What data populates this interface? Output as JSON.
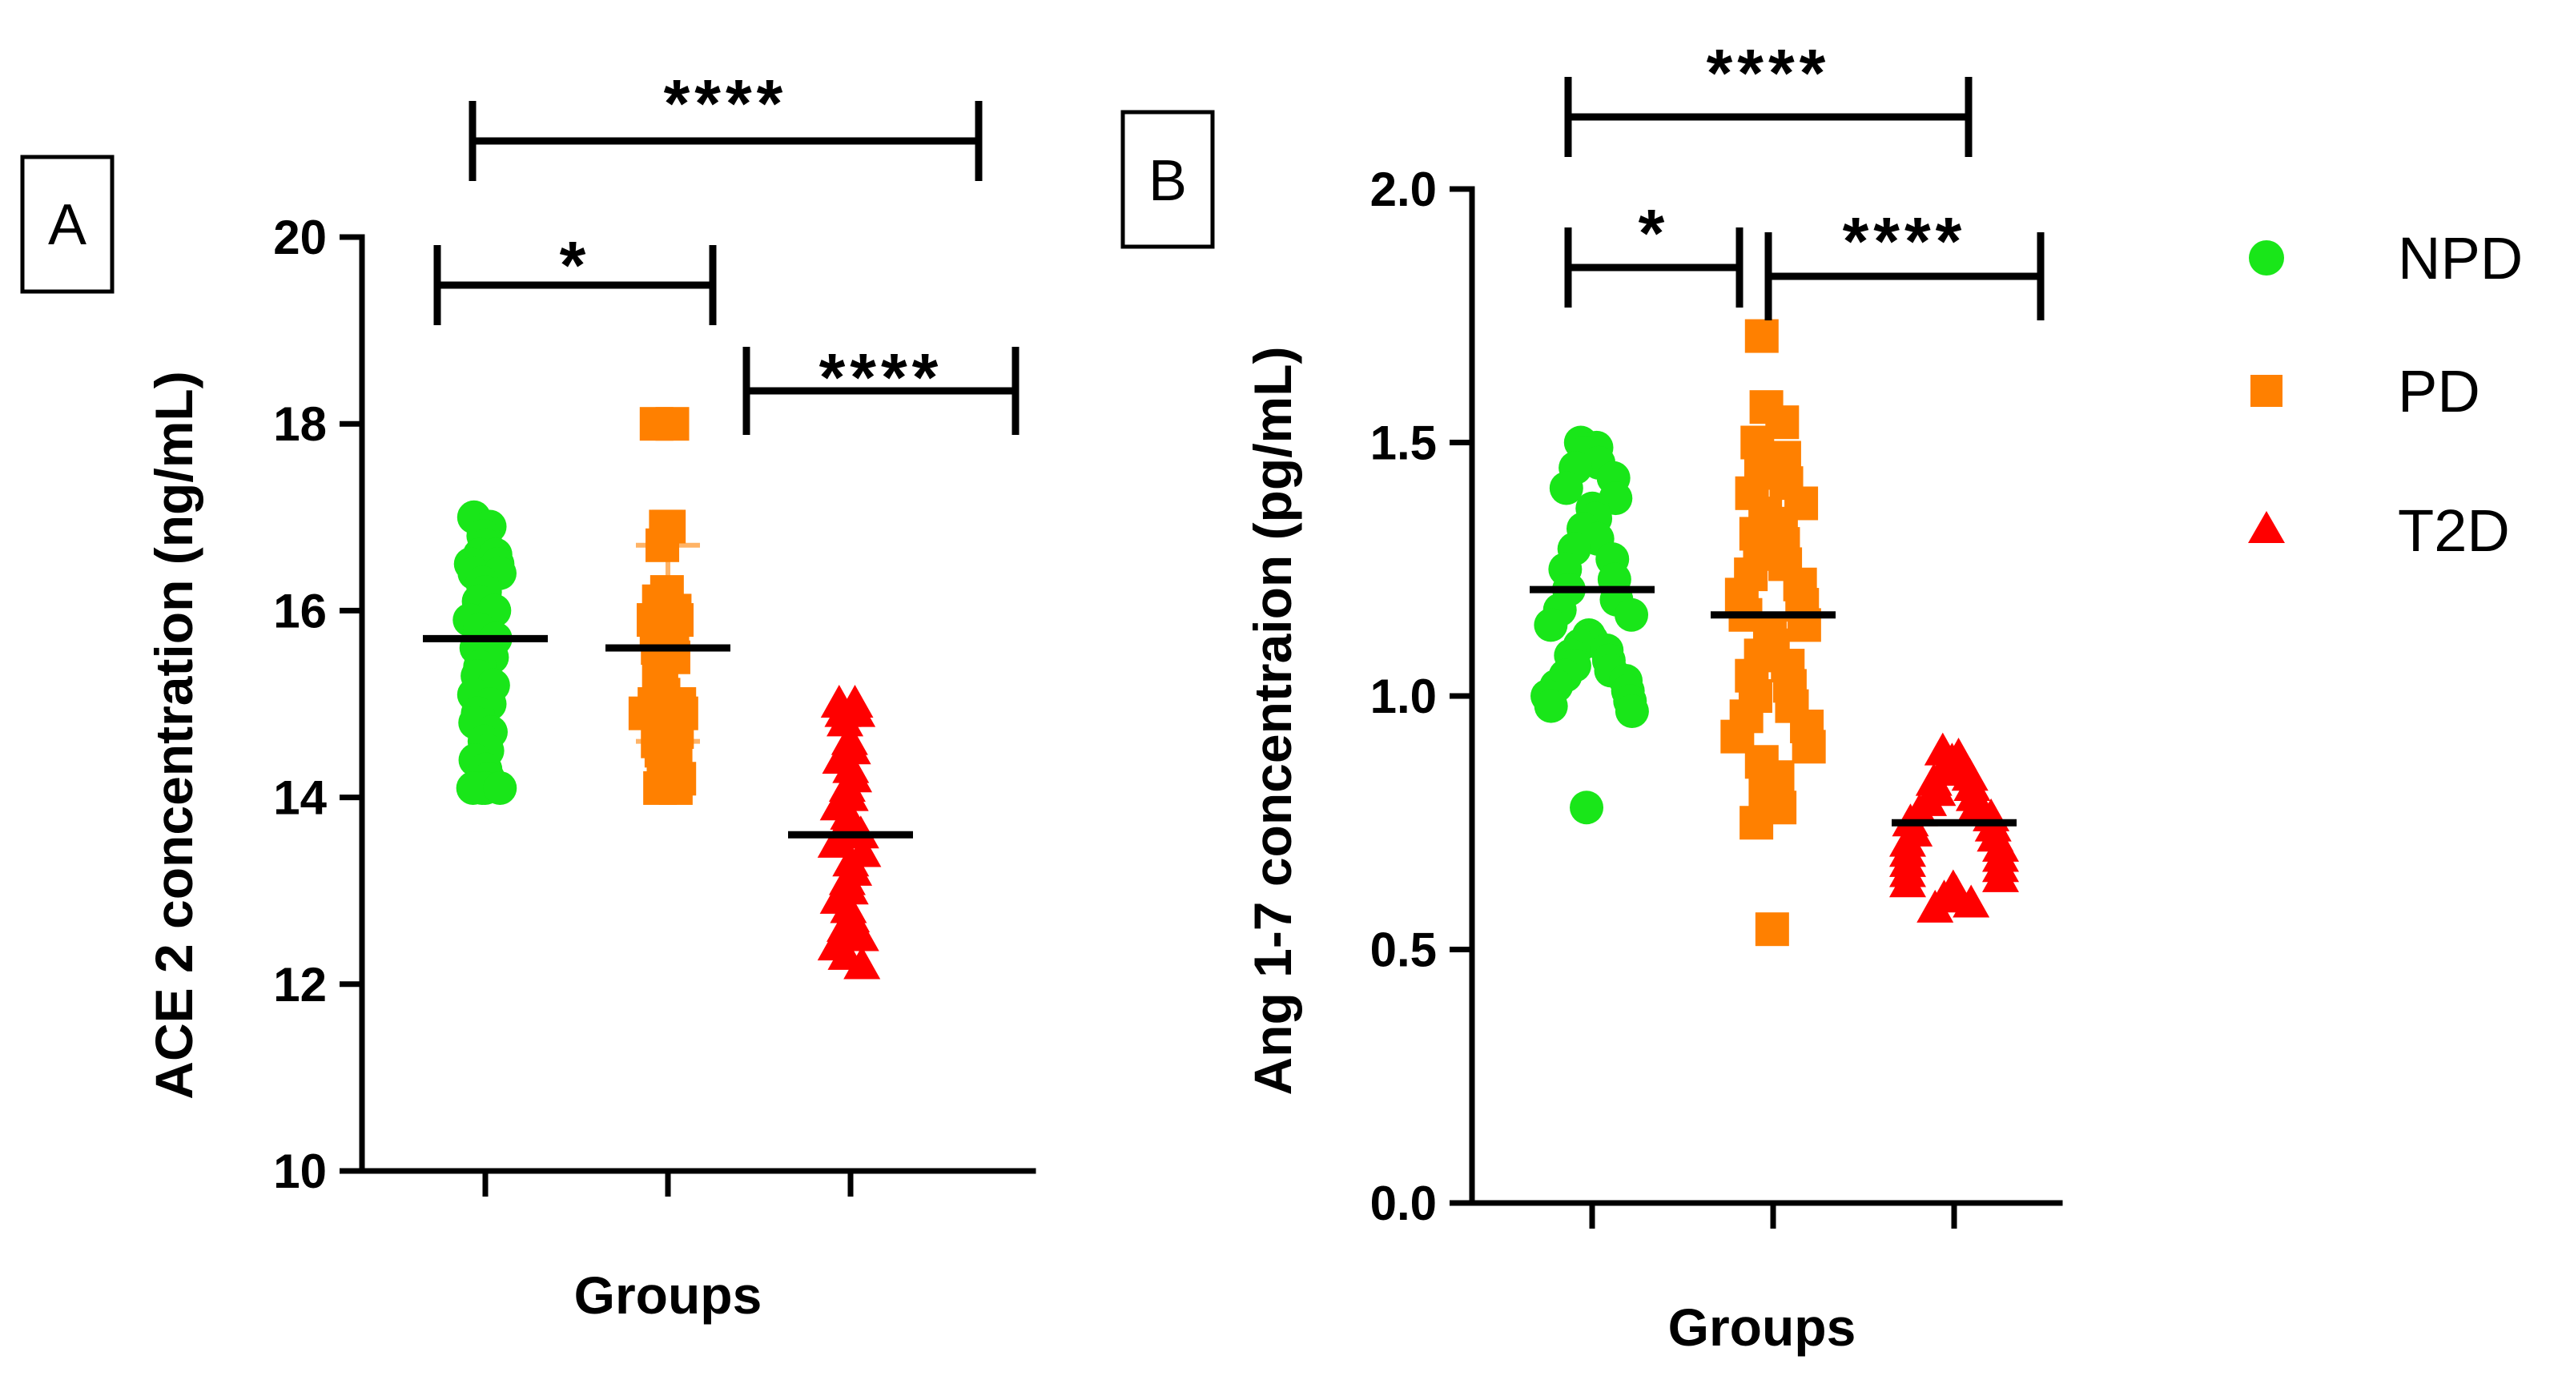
{
  "chart_data": [
    {
      "panel": "A",
      "type": "scatter",
      "ylabel": "ACE 2 concentration (ng/mL)",
      "xlabel": "Groups",
      "ylim": [
        10,
        20
      ],
      "yticks": [
        "10",
        "12",
        "14",
        "16",
        "18",
        "20"
      ],
      "groups": [
        "NPD",
        "PD",
        "T2D"
      ],
      "series": [
        {
          "name": "NPD",
          "mean": 15.7,
          "values": [
            17.0,
            16.9,
            16.8,
            16.7,
            16.6,
            16.6,
            16.5,
            16.5,
            16.4,
            16.4,
            16.3,
            16.2,
            16.1,
            16.0,
            15.9,
            15.8,
            15.7,
            15.6,
            15.5,
            15.4,
            15.3,
            15.2,
            15.1,
            15.0,
            14.9,
            14.8,
            14.7,
            14.6,
            14.5,
            14.4,
            14.3,
            14.2,
            14.1,
            14.1,
            14.1,
            14.1
          ]
        },
        {
          "name": "PD",
          "mean": 15.6,
          "sd_range": [
            14.6,
            16.7
          ],
          "values": [
            18.0,
            18.0,
            16.9,
            16.9,
            16.7,
            16.2,
            16.1,
            16.0,
            16.0,
            15.9,
            15.9,
            15.8,
            15.7,
            15.7,
            15.6,
            15.5,
            15.4,
            15.3,
            15.1,
            15.0,
            15.0,
            14.9,
            14.9,
            14.8,
            14.7,
            14.6,
            14.5,
            14.5,
            14.4,
            14.3,
            14.2,
            14.1,
            14.1
          ]
        },
        {
          "name": "T2D",
          "mean": 13.6,
          "values": [
            15.0,
            15.0,
            14.9,
            14.9,
            14.8,
            14.6,
            14.5,
            14.4,
            14.3,
            14.2,
            14.1,
            14.0,
            13.9,
            13.8,
            13.7,
            13.6,
            13.6,
            13.5,
            13.4,
            13.3,
            13.2,
            13.1,
            13.0,
            12.9,
            12.8,
            12.7,
            12.6,
            12.5,
            12.4,
            12.3,
            12.2
          ]
        }
      ],
      "significance": [
        {
          "from": "NPD",
          "to": "PD",
          "label": "*"
        },
        {
          "from": "PD",
          "to": "T2D",
          "label": "****"
        },
        {
          "from": "NPD",
          "to": "T2D",
          "label": "****"
        }
      ]
    },
    {
      "panel": "B",
      "type": "scatter",
      "ylabel": "Ang 1-7 concentraion (pg/mL)",
      "xlabel": "Groups",
      "ylim": [
        0.0,
        2.0
      ],
      "yticks": [
        "0.0",
        "0.5",
        "1.0",
        "1.5",
        "2.0"
      ],
      "groups": [
        "NPD",
        "PD",
        "T2D"
      ],
      "series": [
        {
          "name": "NPD",
          "mean": 1.21,
          "values": [
            1.5,
            1.49,
            1.48,
            1.46,
            1.45,
            1.43,
            1.41,
            1.39,
            1.37,
            1.35,
            1.33,
            1.31,
            1.29,
            1.27,
            1.25,
            1.23,
            1.21,
            1.19,
            1.17,
            1.16,
            1.14,
            1.12,
            1.11,
            1.1,
            1.09,
            1.08,
            1.07,
            1.06,
            1.05,
            1.04,
            1.03,
            1.02,
            1.01,
            1.0,
            0.99,
            0.98,
            0.97,
            0.78
          ]
        },
        {
          "name": "PD",
          "mean": 1.16,
          "values": [
            1.71,
            1.57,
            1.54,
            1.5,
            1.47,
            1.44,
            1.42,
            1.4,
            1.38,
            1.36,
            1.34,
            1.32,
            1.3,
            1.28,
            1.26,
            1.24,
            1.22,
            1.2,
            1.18,
            1.16,
            1.14,
            1.12,
            1.1,
            1.08,
            1.06,
            1.04,
            1.02,
            1.0,
            0.98,
            0.96,
            0.94,
            0.92,
            0.9,
            0.87,
            0.84,
            0.81,
            0.78,
            0.75,
            0.54
          ]
        },
        {
          "name": "T2D",
          "mean": 0.75,
          "values": [
            0.89,
            0.88,
            0.87,
            0.86,
            0.85,
            0.84,
            0.83,
            0.82,
            0.81,
            0.8,
            0.79,
            0.78,
            0.77,
            0.76,
            0.75,
            0.74,
            0.73,
            0.72,
            0.71,
            0.7,
            0.69,
            0.68,
            0.67,
            0.66,
            0.65,
            0.64,
            0.63,
            0.62,
            0.61,
            0.6,
            0.59,
            0.58
          ]
        }
      ],
      "significance": [
        {
          "from": "NPD",
          "to": "PD",
          "label": "*"
        },
        {
          "from": "PD",
          "to": "T2D",
          "label": "****"
        },
        {
          "from": "NPD",
          "to": "T2D",
          "label": "****"
        }
      ]
    }
  ],
  "legend": {
    "position": "right",
    "items": [
      {
        "label": "NPD",
        "marker": "circle",
        "color": "#19e619"
      },
      {
        "label": "PD",
        "marker": "square",
        "color": "#ff8000"
      },
      {
        "label": "T2D",
        "marker": "triangle",
        "color": "#ff0000"
      }
    ]
  },
  "colors": {
    "NPD": "#19e619",
    "PD": "#ff8000",
    "T2D": "#ff0000",
    "PD_errorbar": "#ffb366"
  }
}
